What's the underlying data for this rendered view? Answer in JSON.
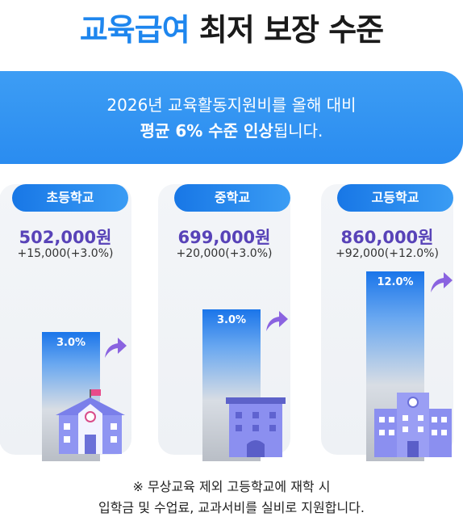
{
  "title": {
    "accent": "교육급여",
    "rest": "최저 보장 수준"
  },
  "banner": {
    "line1": "2026년 교육활동지원비를 올해 대비",
    "line2_bold": "평균 6% 수준 인상",
    "line2_rest": "됩니다."
  },
  "levels": [
    {
      "name": "초등학교",
      "amount": "502,000원",
      "delta": "+15,000(+3.0%)",
      "bar_label": "3.0%",
      "increase_pct": 3.0,
      "building": "school-icon"
    },
    {
      "name": "중학교",
      "amount": "699,000원",
      "delta": "+20,000(+3.0%)",
      "bar_label": "3.0%",
      "increase_pct": 3.0,
      "building": "office-building-icon"
    },
    {
      "name": "고등학교",
      "amount": "860,000원",
      "delta": "+92,000(+12.0%)",
      "bar_label": "12.0%",
      "increase_pct": 12.0,
      "building": "high-school-building-icon"
    }
  ],
  "note": {
    "line1": "※ 무상교육 제외 고등학교에 재학 시",
    "line2": "입학금 및 수업료, 교과서비를 실비로 지원합니다."
  },
  "colors": {
    "accent": "#1e86ee",
    "amount": "#5843b8",
    "banner": "#2a8cf0",
    "arrow": "#8a63e0",
    "building": "#7b7ff0"
  }
}
